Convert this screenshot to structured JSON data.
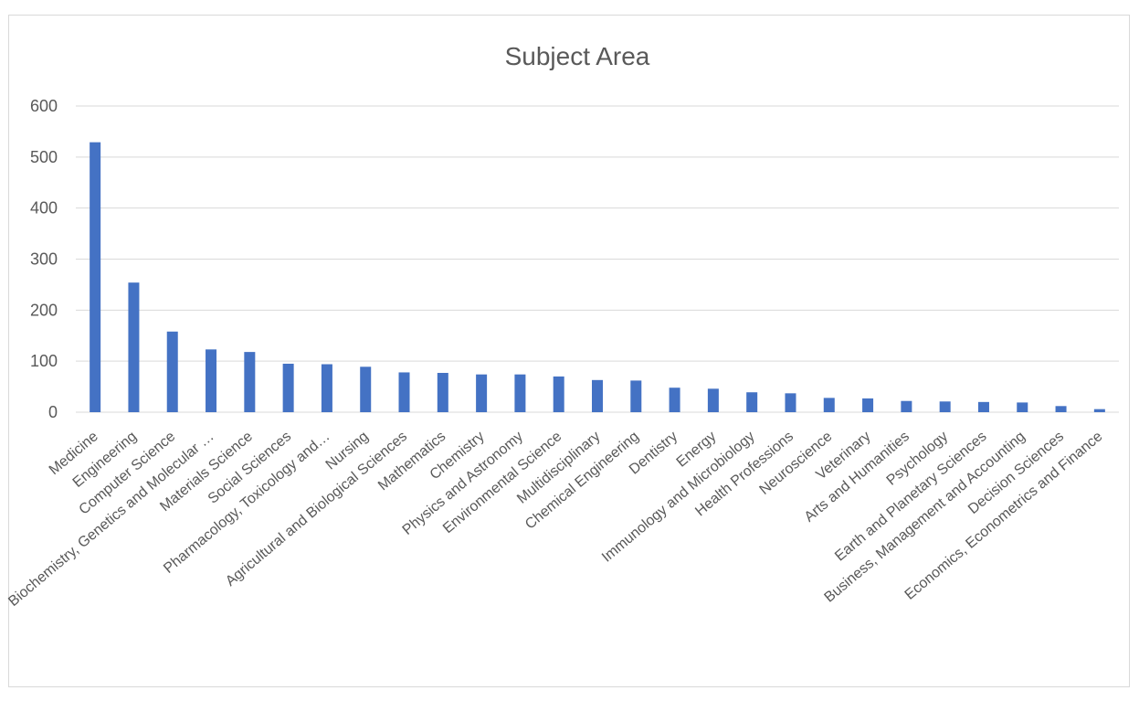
{
  "chart_data": {
    "type": "bar",
    "title": "Subject Area",
    "xlabel": "",
    "ylabel": "",
    "ylim": [
      0,
      600
    ],
    "yticks": [
      0,
      100,
      200,
      300,
      400,
      500,
      600
    ],
    "grid": true,
    "legend": "none",
    "bar_color": "#4472c4",
    "categories": [
      "Medicine",
      "Engineering",
      "Computer Science",
      "Biochemistry, Genetics and Molecular …",
      "Materials Science",
      "Social Sciences",
      "Pharmacology, Toxicology and…",
      "Nursing",
      "Agricultural and Biological Sciences",
      "Mathematics",
      "Chemistry",
      "Physics and Astronomy",
      "Environmental Science",
      "Multidisciplinary",
      "Chemical Engineering",
      "Dentistry",
      "Energy",
      "Immunology and Microbiology",
      "Health Professions",
      "Neuroscience",
      "Veterinary",
      "Arts and Humanities",
      "Psychology",
      "Earth and Planetary Sciences",
      "Business, Management and Accounting",
      "Decision Sciences",
      "Economics, Econometrics and Finance"
    ],
    "values": [
      529,
      254,
      158,
      123,
      118,
      95,
      94,
      89,
      78,
      77,
      74,
      74,
      70,
      63,
      62,
      48,
      46,
      39,
      37,
      28,
      27,
      22,
      21,
      20,
      19,
      12,
      6
    ]
  }
}
